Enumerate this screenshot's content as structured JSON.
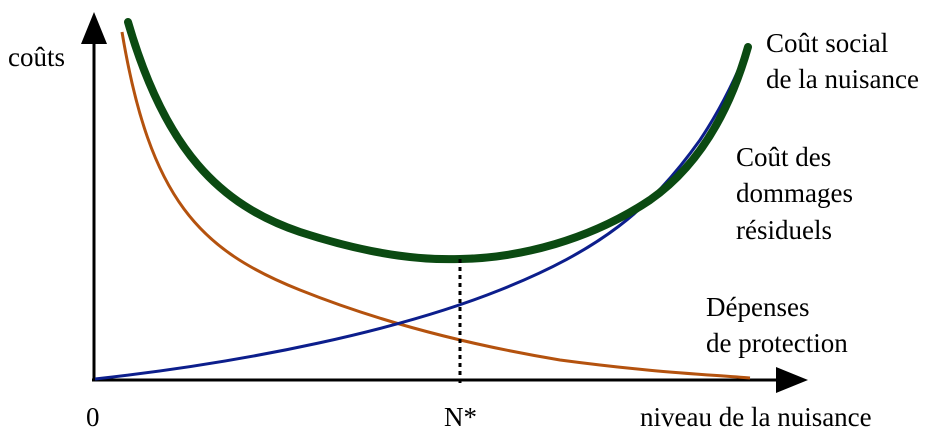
{
  "axes": {
    "y_label": "coûts",
    "x_label": "niveau de la nuisance",
    "origin_label": "0",
    "optimum_label": "N*"
  },
  "curves": {
    "social_cost": {
      "label_line1": "Coût social",
      "label_line2": "de la nuisance",
      "color": "#0b4a12"
    },
    "residual_damage": {
      "label_line1": "Coût des",
      "label_line2": "dommages",
      "label_line3": "résiduels",
      "color": "#0c1e8c"
    },
    "protection_spending": {
      "label_line1": "Dépenses",
      "label_line2": "de protection",
      "color": "#b4520e"
    }
  }
}
